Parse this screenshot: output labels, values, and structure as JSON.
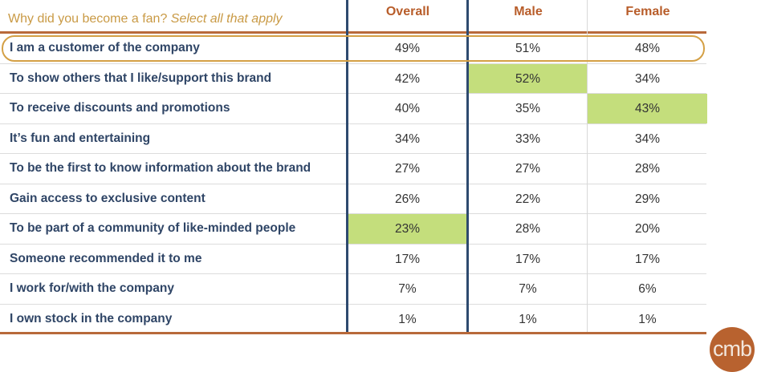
{
  "header": {
    "question": "Why did you become a fan?",
    "instruction": "Select all that apply",
    "columns": [
      "Overall",
      "Male",
      "Female"
    ]
  },
  "rows": [
    {
      "label": "I am a customer of the company",
      "values": [
        "49%",
        "51%",
        "48%"
      ],
      "highlight": null,
      "outlined": true
    },
    {
      "label": "To show others that I like/support this brand",
      "values": [
        "42%",
        "52%",
        "34%"
      ],
      "highlight": 1
    },
    {
      "label": "To receive discounts and promotions",
      "values": [
        "40%",
        "35%",
        "43%"
      ],
      "highlight": 2
    },
    {
      "label": "It’s fun and entertaining",
      "values": [
        "34%",
        "33%",
        "34%"
      ],
      "highlight": null
    },
    {
      "label": "To be the first to know information about the brand",
      "values": [
        "27%",
        "27%",
        "28%"
      ],
      "highlight": null
    },
    {
      "label": "Gain access to exclusive content",
      "values": [
        "26%",
        "22%",
        "29%"
      ],
      "highlight": null
    },
    {
      "label": "To be part of a community of like-minded people",
      "values": [
        "23%",
        "28%",
        "20%"
      ],
      "highlight": 0
    },
    {
      "label": "Someone recommended it to me",
      "values": [
        "17%",
        "17%",
        "17%"
      ],
      "highlight": null
    },
    {
      "label": "I work for/with the company",
      "values": [
        "7%",
        "7%",
        "6%"
      ],
      "highlight": null
    },
    {
      "label": "I own stock in the company",
      "values": [
        "1%",
        "1%",
        "1%"
      ],
      "highlight": null
    }
  ],
  "logo": "cmb",
  "colors": {
    "highlight": "#c4de7c",
    "accent": "#b8693a",
    "navy": "#2e4a6f"
  }
}
